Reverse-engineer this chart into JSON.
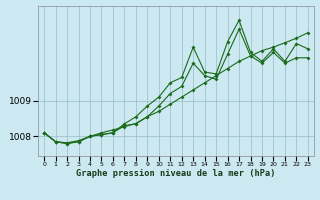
{
  "x": [
    0,
    1,
    2,
    3,
    4,
    5,
    6,
    7,
    8,
    9,
    10,
    11,
    12,
    13,
    14,
    15,
    16,
    17,
    18,
    19,
    20,
    21,
    22,
    23
  ],
  "line1": [
    1008.1,
    1007.85,
    1007.8,
    1007.85,
    1008.0,
    1008.05,
    1008.1,
    1008.35,
    1008.55,
    1008.85,
    1009.1,
    1009.5,
    1009.65,
    1010.5,
    1009.8,
    1009.75,
    1010.65,
    1011.25,
    1010.35,
    1010.1,
    1010.45,
    1010.1,
    1010.6,
    1010.45
  ],
  "line2": [
    1008.1,
    1007.85,
    1007.8,
    1007.85,
    1008.0,
    1008.05,
    1008.1,
    1008.3,
    1008.35,
    1008.55,
    1008.85,
    1009.2,
    1009.4,
    1010.05,
    1009.7,
    1009.6,
    1010.3,
    1011.0,
    1010.25,
    1010.05,
    1010.35,
    1010.05,
    1010.2,
    1010.2
  ],
  "line3": [
    1008.1,
    1007.85,
    1007.82,
    1007.88,
    1008.0,
    1008.1,
    1008.18,
    1008.27,
    1008.36,
    1008.55,
    1008.7,
    1008.9,
    1009.1,
    1009.3,
    1009.5,
    1009.7,
    1009.9,
    1010.1,
    1010.25,
    1010.4,
    1010.5,
    1010.62,
    1010.75,
    1010.9
  ],
  "line_color": "#1a6b1a",
  "bg_color": "#cce8f0",
  "grid_color": "#99bbcc",
  "xlabel": "Graphe pression niveau de la mer (hPa)",
  "yticks": [
    1008,
    1009
  ],
  "ylim": [
    1007.45,
    1011.65
  ],
  "xlim": [
    -0.5,
    23.5
  ]
}
